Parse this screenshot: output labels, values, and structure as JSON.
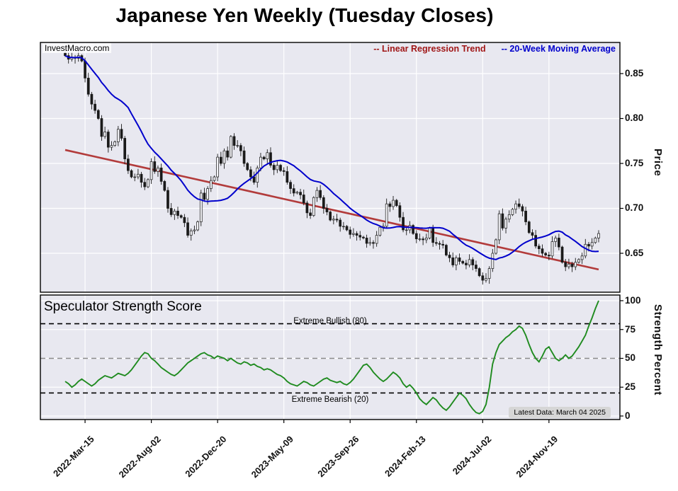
{
  "title": "Japanese Yen Weekly (Tuesday Closes)",
  "watermark": "InvestMacro.com",
  "legend": {
    "trend": "-- Linear Regression Trend",
    "ma": "-- 20-Week Moving Average"
  },
  "colors": {
    "panel_bg": "#e8e8f0",
    "trend_line": "#b23b3b",
    "trend_text": "#a01616",
    "ma_line": "#0000cc",
    "ma_text": "#0000cc",
    "strength_line": "#1f8b1f",
    "candle": "#1a1a1a",
    "threshold_extreme": "#000000",
    "threshold_mid": "#8a8a8a"
  },
  "x_axis": {
    "labels": [
      "2022-Mar-15",
      "2022-Aug-02",
      "2022-Dec-20",
      "2023-May-09",
      "2023-Sep-26",
      "2024-Feb-13",
      "2024-Jul-02",
      "2024-Nov-19"
    ]
  },
  "top_panel": {
    "ylabel": "Price",
    "yticks": [
      "0.85",
      "0.80",
      "0.75",
      "0.70",
      "0.65"
    ]
  },
  "bottom_panel": {
    "title": "Speculator Strength Score",
    "ylabel": "Strength Percent",
    "yticks": [
      "100",
      "75",
      "50",
      "25",
      "0"
    ],
    "extreme_bullish": "Extreme Bullish (80)",
    "extreme_bearish": "Extreme Bearish (20)",
    "latest": "Latest Data: March 04 2025"
  },
  "chart_data": [
    {
      "type": "candlestick",
      "name": "Japanese Yen weekly price (Tuesday closes)",
      "x_tick_labels": [
        "2022-Mar-15",
        "2022-Aug-02",
        "2022-Dec-20",
        "2023-May-09",
        "2023-Sep-26",
        "2024-Feb-13",
        "2024-Jul-02",
        "2024-Nov-19"
      ],
      "x_tick_weeks": [
        6,
        26,
        46,
        66,
        86,
        106,
        126,
        146
      ],
      "ylabel": "Price",
      "ylim": [
        0.607,
        0.885
      ],
      "yticks": [
        0.85,
        0.8,
        0.75,
        0.7,
        0.65
      ],
      "series": [
        {
          "name": "Weekly close",
          "type": "candlestick_close",
          "values": [
            0.87,
            0.866,
            0.868,
            0.867,
            0.87,
            0.864,
            0.845,
            0.827,
            0.816,
            0.809,
            0.8,
            0.78,
            0.785,
            0.768,
            0.77,
            0.774,
            0.788,
            0.778,
            0.755,
            0.742,
            0.735,
            0.735,
            0.738,
            0.729,
            0.724,
            0.732,
            0.752,
            0.741,
            0.745,
            0.73,
            0.72,
            0.7,
            0.693,
            0.697,
            0.692,
            0.69,
            0.684,
            0.67,
            0.675,
            0.676,
            0.685,
            0.717,
            0.71,
            0.722,
            0.731,
            0.735,
            0.757,
            0.75,
            0.764,
            0.757,
            0.78,
            0.77,
            0.77,
            0.764,
            0.75,
            0.743,
            0.735,
            0.729,
            0.745,
            0.757,
            0.755,
            0.762,
            0.748,
            0.743,
            0.748,
            0.742,
            0.741,
            0.729,
            0.722,
            0.717,
            0.718,
            0.715,
            0.706,
            0.695,
            0.692,
            0.712,
            0.72,
            0.712,
            0.7,
            0.696,
            0.687,
            0.688,
            0.687,
            0.68,
            0.68,
            0.676,
            0.671,
            0.672,
            0.67,
            0.668,
            0.667,
            0.661,
            0.662,
            0.661,
            0.67,
            0.679,
            0.68,
            0.705,
            0.702,
            0.709,
            0.703,
            0.69,
            0.676,
            0.676,
            0.681,
            0.672,
            0.666,
            0.666,
            0.665,
            0.667,
            0.678,
            0.662,
            0.661,
            0.66,
            0.659,
            0.648,
            0.645,
            0.637,
            0.645,
            0.641,
            0.639,
            0.637,
            0.643,
            0.637,
            0.633,
            0.625,
            0.62,
            0.622,
            0.633,
            0.65,
            0.665,
            0.694,
            0.678,
            0.688,
            0.693,
            0.699,
            0.705,
            0.702,
            0.697,
            0.685,
            0.673,
            0.67,
            0.658,
            0.655,
            0.65,
            0.648,
            0.647,
            0.663,
            0.667,
            0.657,
            0.64,
            0.635,
            0.638,
            0.635,
            0.64,
            0.643,
            0.647,
            0.66,
            0.658,
            0.662,
            0.667,
            0.672
          ]
        },
        {
          "name": "20-Week Moving Average",
          "type": "line",
          "window": 20,
          "derived_from": "simple moving average of weekly close",
          "color": "#0000cc"
        },
        {
          "name": "Linear Regression Trend",
          "type": "line",
          "start": 0.765,
          "end": 0.632,
          "color": "#b23b3b"
        }
      ]
    },
    {
      "type": "line",
      "name": "Speculator Strength Score",
      "ylabel": "Strength Percent",
      "ylim": [
        -3,
        105
      ],
      "yticks": [
        100,
        75,
        50,
        25,
        0
      ],
      "color": "#1f8b1f",
      "thresholds": [
        {
          "value": 80,
          "label": "Extreme Bullish (80)",
          "color": "#000000",
          "dash": true
        },
        {
          "value": 50,
          "label": "",
          "color": "#8a8a8a",
          "dash": true
        },
        {
          "value": 20,
          "label": "Extreme Bearish (20)",
          "color": "#000000",
          "dash": true
        }
      ],
      "latest_label": "Latest Data: March 04 2025",
      "values": [
        30,
        28,
        25,
        27,
        30,
        32,
        30,
        28,
        26,
        28,
        31,
        33,
        35,
        34,
        33,
        35,
        37,
        36,
        35,
        37,
        40,
        44,
        48,
        52,
        55,
        54,
        50,
        48,
        45,
        42,
        40,
        38,
        36,
        35,
        37,
        40,
        43,
        46,
        48,
        50,
        52,
        54,
        55,
        53,
        52,
        50,
        52,
        51,
        50,
        48,
        50,
        48,
        46,
        45,
        47,
        46,
        44,
        45,
        43,
        42,
        40,
        41,
        40,
        38,
        36,
        35,
        33,
        30,
        28,
        27,
        26,
        28,
        30,
        29,
        27,
        26,
        28,
        30,
        32,
        33,
        31,
        30,
        29,
        30,
        28,
        27,
        29,
        32,
        36,
        40,
        44,
        45,
        42,
        38,
        35,
        32,
        30,
        32,
        35,
        38,
        36,
        33,
        28,
        25,
        27,
        24,
        20,
        15,
        12,
        10,
        13,
        16,
        14,
        10,
        7,
        5,
        8,
        12,
        16,
        20,
        18,
        15,
        10,
        6,
        3,
        2,
        4,
        10,
        25,
        45,
        55,
        62,
        65,
        68,
        70,
        73,
        75,
        78,
        76,
        70,
        62,
        55,
        50,
        47,
        52,
        58,
        60,
        55,
        50,
        48,
        50,
        53,
        50,
        52,
        56,
        60,
        65,
        70,
        78,
        85,
        93,
        100
      ]
    }
  ]
}
